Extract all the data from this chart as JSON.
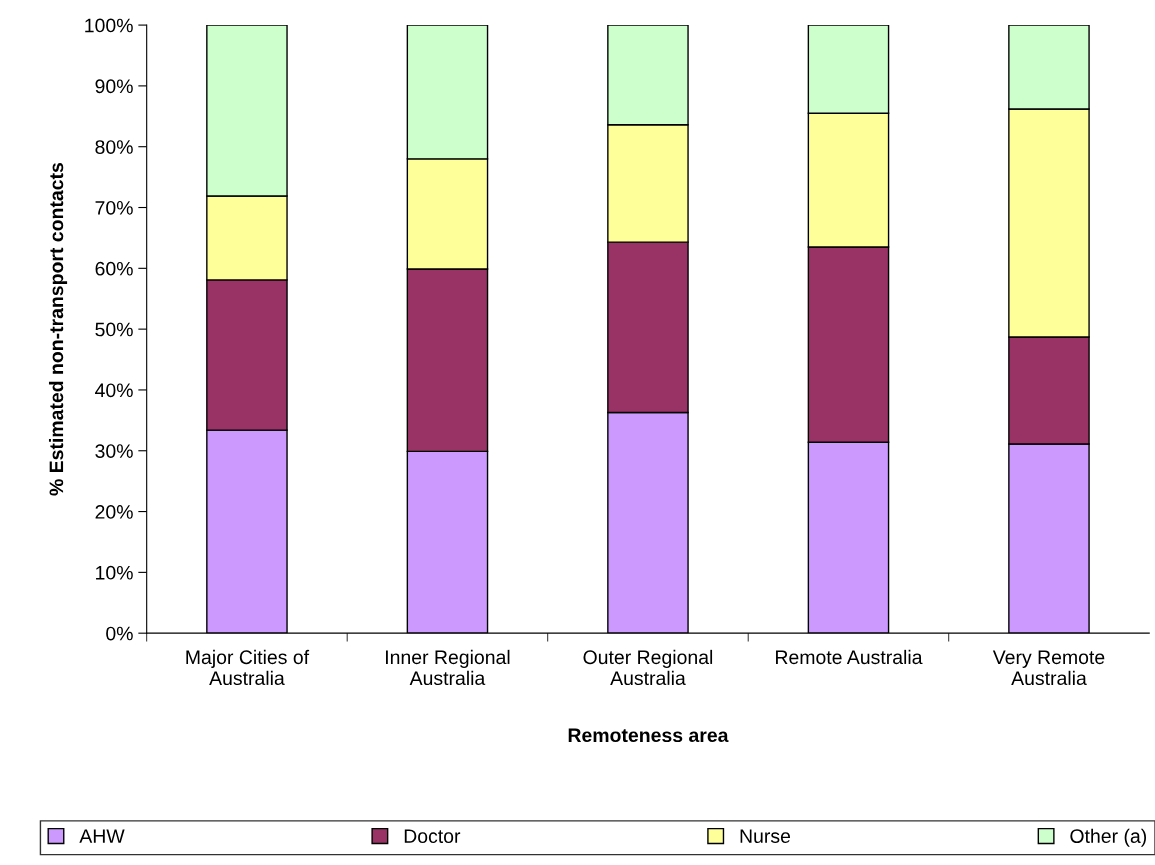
{
  "chart_data": {
    "type": "bar",
    "stacked": true,
    "xlabel": "Remoteness area",
    "ylabel": "% Estimated non-transport contacts",
    "categories": [
      "Major Cities of\nAustralia",
      "Inner Regional\nAustralia",
      "Outer Regional\nAustralia",
      "Remote Australia",
      "Very Remote\nAustralia"
    ],
    "series": [
      {
        "name": "AHW",
        "color": "#cc99ff",
        "values": [
          33.4,
          29.9,
          36.3,
          31.4,
          31.1
        ]
      },
      {
        "name": "Doctor",
        "color": "#993366",
        "values": [
          24.7,
          30.0,
          28.0,
          32.1,
          17.6
        ]
      },
      {
        "name": "Nurse",
        "color": "#ffff99",
        "values": [
          13.8,
          18.1,
          19.3,
          22.0,
          37.5
        ]
      },
      {
        "name": "Other (a)",
        "color": "#ccffcc",
        "values": [
          28.1,
          22.0,
          16.4,
          14.5,
          13.8
        ]
      }
    ],
    "ylim": [
      0,
      100
    ],
    "yticks": [
      {
        "value": 0,
        "label": "0%"
      },
      {
        "value": 10,
        "label": "10%"
      },
      {
        "value": 20,
        "label": "20%"
      },
      {
        "value": 30,
        "label": "30%"
      },
      {
        "value": 40,
        "label": "40%"
      },
      {
        "value": 50,
        "label": "50%"
      },
      {
        "value": 60,
        "label": "60%"
      },
      {
        "value": 70,
        "label": "70%"
      },
      {
        "value": 80,
        "label": "80%"
      },
      {
        "value": 90,
        "label": "90%"
      },
      {
        "value": 100,
        "label": "100%"
      }
    ],
    "legend": "bottom",
    "grid": false
  }
}
